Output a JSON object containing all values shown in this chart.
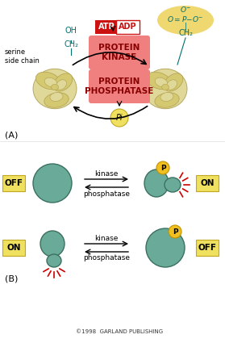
{
  "bg_color": "#ffffff",
  "panel_A_label": "(A)",
  "panel_B_label": "(B)",
  "atp_label": "ATP",
  "adp_label": "ADP",
  "protein_kinase_label": "PROTEIN\nKINASE",
  "protein_phosphatase_label": "PROTEIN\nPHOSPHATASE",
  "pi_label": "Pi",
  "serine_label": "serine\nside chain",
  "oh_label": "OH",
  "ch2_label": "CH₂",
  "kinase_label": "kinase",
  "phosphatase_label": "phosphatase",
  "on_label": "ON",
  "off_label": "OFF",
  "p_label": "P",
  "copyright_label": "©1998  GARLAND PUBLISHING",
  "protein_color": "#d4c870",
  "protein_color2": "#e0d898",
  "protein_outline": "#b0a050",
  "enzyme_color": "#6aaa98",
  "enzyme_edge": "#3a7060",
  "phospho_color": "#f0c020",
  "phospho_edge": "#c09000",
  "atp_box_color": "#cc1111",
  "adp_box_color": "#ffffff",
  "adp_text_color": "#cc1111",
  "kinase_box_color": "#f08080",
  "phosphatase_box_color": "#f08080",
  "label_box_color": "#f0e060",
  "label_box_edge": "#c0a820",
  "teal_color": "#007070",
  "red_burst_color": "#cc0000",
  "arrow_color": "#000000",
  "phospho_bg_color": "#f0d870"
}
